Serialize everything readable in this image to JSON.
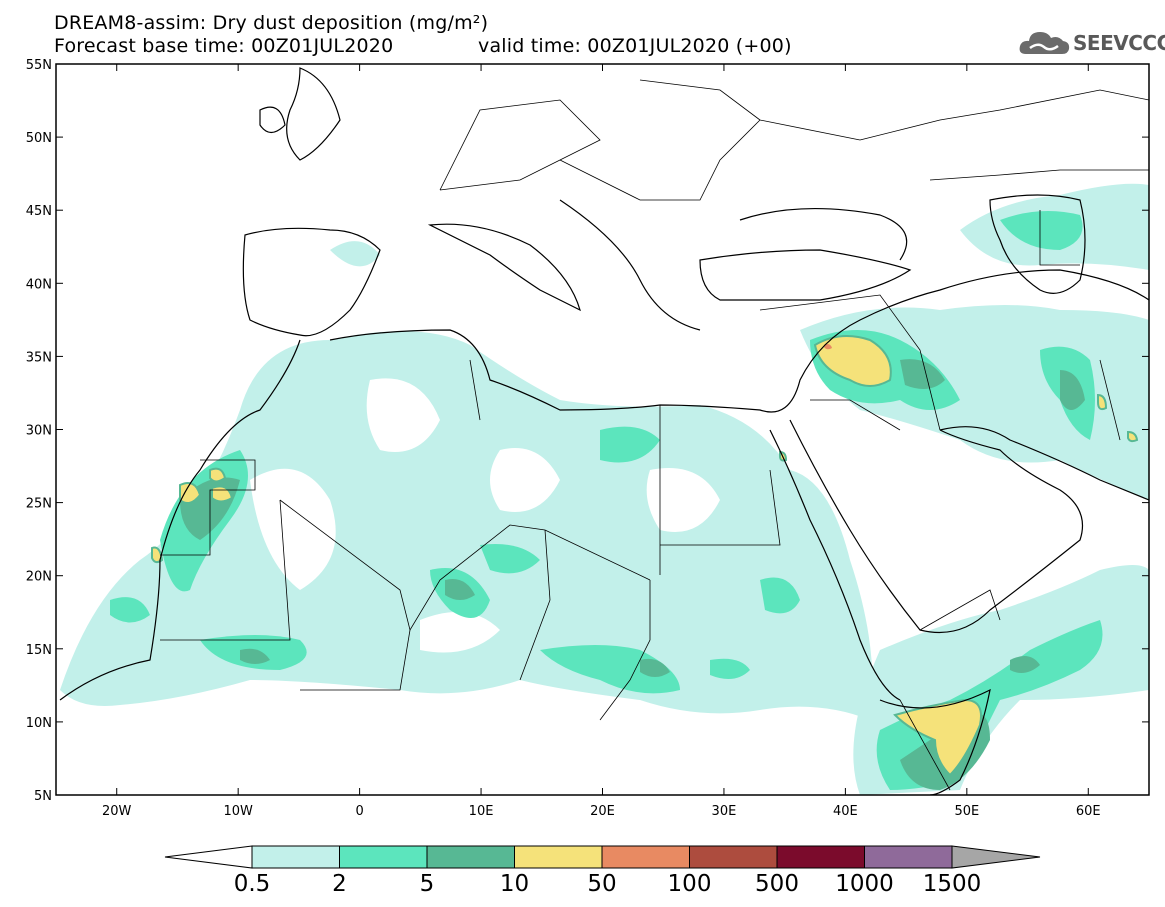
{
  "header": {
    "title_line1": "DREAM8-assim: Dry dust deposition (mg/m²)",
    "title_line2": "Forecast base time: 00Z01JUL2020",
    "valid_time": "valid time: 00Z01JUL2020 (+00)",
    "logo_text": "SEEVCCC"
  },
  "map": {
    "lon_range": [
      -25,
      65
    ],
    "lat_range": [
      5,
      55
    ],
    "lat_ticks": [
      "55N",
      "50N",
      "45N",
      "40N",
      "35N",
      "30N",
      "25N",
      "20N",
      "15N",
      "10N",
      "5N"
    ],
    "lon_ticks": [
      "20W",
      "10W",
      "0",
      "10E",
      "20E",
      "30E",
      "40E",
      "50E",
      "60E"
    ]
  },
  "legend": {
    "levels": [
      "0.5",
      "2",
      "5",
      "10",
      "50",
      "100",
      "500",
      "1000",
      "1500"
    ],
    "colors": [
      "#c2f0ea",
      "#5ce5bd",
      "#57b894",
      "#f5e27a",
      "#e88a62",
      "#ad4c3e",
      "#7b0b2c",
      "#8f6a9a",
      "#a6a6a6"
    ]
  }
}
